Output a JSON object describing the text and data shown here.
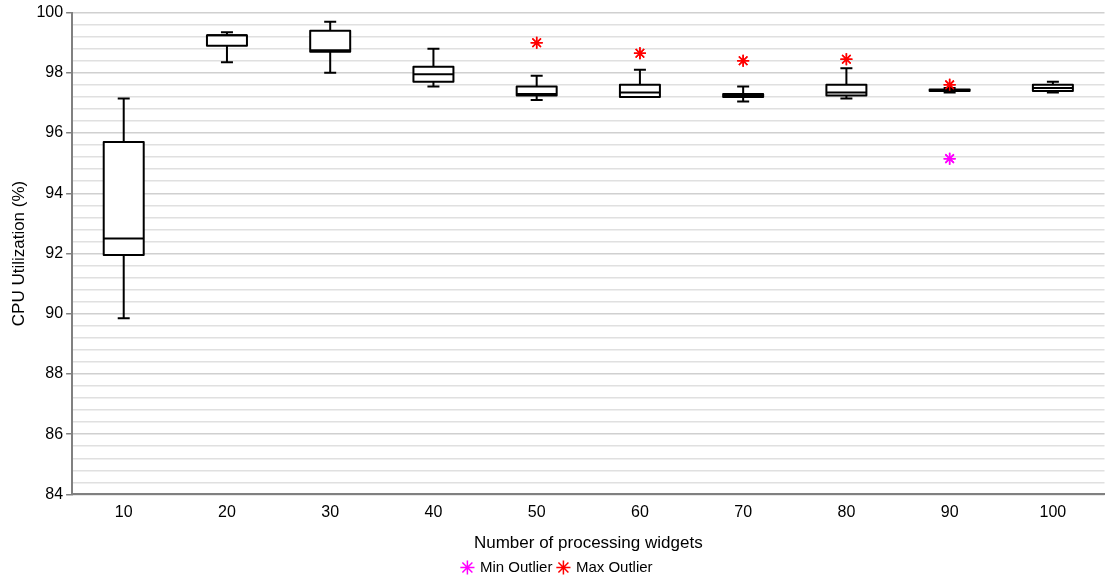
{
  "chart_data": {
    "type": "box",
    "xlabel": "Number of processing widgets",
    "ylabel": "CPU Utilization (%)",
    "categories": [
      "10",
      "20",
      "30",
      "40",
      "50",
      "60",
      "70",
      "80",
      "90",
      "100"
    ],
    "boxes": [
      {
        "low": 89.85,
        "q1": 91.95,
        "median": 92.5,
        "q3": 95.7,
        "high": 97.15
      },
      {
        "low": 98.35,
        "q1": 98.9,
        "median": 99.25,
        "q3": 99.25,
        "high": 99.35
      },
      {
        "low": 98.0,
        "q1": 98.7,
        "median": 98.75,
        "q3": 99.4,
        "high": 99.7
      },
      {
        "low": 97.55,
        "q1": 97.7,
        "median": 97.95,
        "q3": 98.2,
        "high": 98.8
      },
      {
        "low": 97.1,
        "q1": 97.25,
        "median": 97.3,
        "q3": 97.55,
        "high": 97.9
      },
      {
        "low": 97.2,
        "q1": 97.2,
        "median": 97.35,
        "q3": 97.6,
        "high": 98.1
      },
      {
        "low": 97.05,
        "q1": 97.2,
        "median": 97.25,
        "q3": 97.3,
        "high": 97.55
      },
      {
        "low": 97.15,
        "q1": 97.25,
        "median": 97.35,
        "q3": 97.6,
        "high": 98.15
      },
      {
        "low": 97.35,
        "q1": 97.4,
        "median": 97.42,
        "q3": 97.45,
        "high": 97.5
      },
      {
        "low": 97.35,
        "q1": 97.4,
        "median": 97.5,
        "q3": 97.6,
        "high": 97.7
      }
    ],
    "series": [
      {
        "name": "Min Outlier",
        "type": "scatter",
        "color": "#ff00ff",
        "x": [
          "90"
        ],
        "values": [
          95.15
        ]
      },
      {
        "name": "Max Outlier",
        "type": "scatter",
        "color": "#ff0000",
        "x": [
          "50",
          "60",
          "70",
          "80",
          "90"
        ],
        "values": [
          99.0,
          98.65,
          98.4,
          98.45,
          97.6
        ]
      }
    ],
    "ylim": [
      84,
      100
    ],
    "yticks": [
      84,
      {
        "value": 84.4,
        "label": null
      },
      {
        "value": 84.8,
        "label": null
      },
      {
        "value": 85.2,
        "label": null
      },
      {
        "value": 85.6,
        "label": null
      },
      86,
      {
        "value": 86.4,
        "label": null
      },
      {
        "value": 86.8,
        "label": null
      },
      {
        "value": 87.2,
        "label": null
      },
      {
        "value": 87.6,
        "label": null
      },
      88,
      {
        "value": 88.4,
        "label": null
      },
      {
        "value": 88.8,
        "label": null
      },
      {
        "value": 89.2,
        "label": null
      },
      {
        "value": 89.6,
        "label": null
      },
      90,
      {
        "value": 90.4,
        "label": null
      },
      {
        "value": 90.8,
        "label": null
      },
      {
        "value": 91.2,
        "label": null
      },
      {
        "value": 91.6,
        "label": null
      },
      92,
      {
        "value": 92.4,
        "label": null
      },
      {
        "value": 92.8,
        "label": null
      },
      {
        "value": 93.2,
        "label": null
      },
      {
        "value": 93.6,
        "label": null
      },
      94,
      {
        "value": 94.4,
        "label": null
      },
      {
        "value": 94.8,
        "label": null
      },
      {
        "value": 95.2,
        "label": null
      },
      {
        "value": 95.6,
        "label": null
      },
      96,
      {
        "value": 96.4,
        "label": null
      },
      {
        "value": 96.8,
        "label": null
      },
      {
        "value": 97.2,
        "label": null
      },
      {
        "value": 97.6,
        "label": null
      },
      98,
      {
        "value": 98.4,
        "label": null
      },
      {
        "value": 98.8,
        "label": null
      },
      {
        "value": 99.2,
        "label": null
      },
      {
        "value": 99.6,
        "label": null
      },
      100
    ],
    "grid": "y",
    "legend": "bottom",
    "marker": "cross"
  }
}
